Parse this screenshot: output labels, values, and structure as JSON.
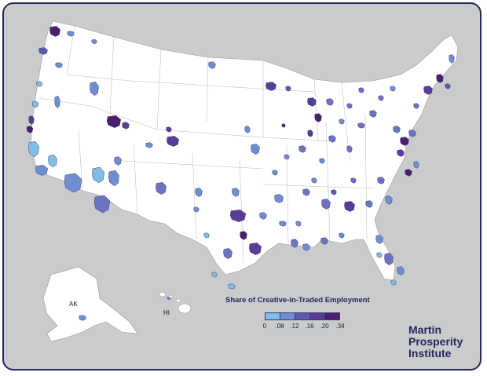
{
  "map": {
    "colors": {
      "c1": "#80bde4",
      "c2": "#6f8ed0",
      "c3": "#6c73c2",
      "c4": "#5c5bb0",
      "c5": "#5a3b98",
      "c6": "#4a1f6e",
      "land": "#ffffff",
      "water": "#c9cbcd",
      "border": "#26275a"
    },
    "labels": {
      "alaska": "AK",
      "hawaii": "HI"
    }
  },
  "legend": {
    "title": "Share of Creative-in-Traded Employment",
    "ticks": [
      "0",
      ".08",
      ".12",
      ".16",
      ".20",
      ".34"
    ]
  },
  "logo": {
    "line1": "Martin",
    "line2": "Prosperity",
    "line3": "Institute"
  }
}
